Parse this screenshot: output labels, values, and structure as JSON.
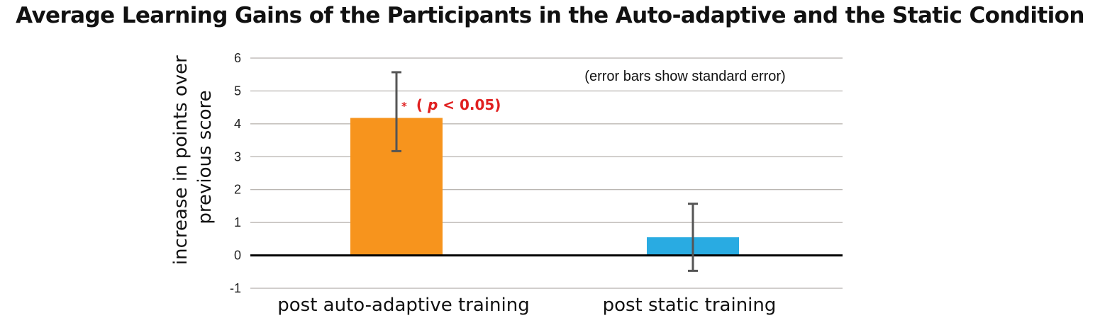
{
  "chart_data": {
    "type": "bar",
    "title": "Average Learning Gains of the Participants in the Auto-adaptive and the Static Condition",
    "ylabel_lines": [
      "increase in points over",
      "previous score"
    ],
    "xlabel": "",
    "ylim": [
      -1,
      6
    ],
    "yticks": [
      "6",
      "5",
      "4",
      "3",
      "2",
      "1",
      "0",
      "-1"
    ],
    "categories": [
      "post auto-adaptive training",
      "post static training"
    ],
    "values": [
      4.18,
      0.55
    ],
    "error_bars": [
      [
        3.17,
        5.57
      ],
      [
        -0.47,
        1.57
      ]
    ],
    "colors": [
      "#F7941D",
      "#29ABE2"
    ],
    "error_color": "#555555",
    "grid": true,
    "note": "(error bars show standard error)",
    "significance": {
      "star": "*",
      "open": "(",
      "p": "p",
      "rest": " < 0.05)",
      "color": "#E02020"
    }
  }
}
